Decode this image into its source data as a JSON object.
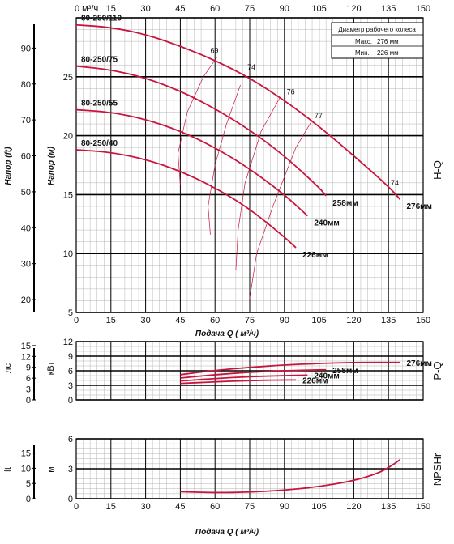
{
  "colors": {
    "curve": "#c8153d",
    "grid_major": "#000000",
    "grid_minor": "#b4b4b4",
    "efficiency": "#c8153d"
  },
  "legend": {
    "title": "Диаметр рабочего колеса",
    "max_label": "Макс.",
    "max_value": "276 мм",
    "min_label": "Мин.",
    "min_value": "226 мм"
  },
  "top_axis": {
    "unit_zero_label": "0 м³/ч",
    "ticks": [
      "15",
      "30",
      "45",
      "60",
      "75",
      "90",
      "105",
      "120",
      "135",
      "150"
    ]
  },
  "chart_data": [
    {
      "type": "line",
      "panel": "H-Q",
      "xlabel": "Подача Q ( м³/ч)",
      "ylabel": "Напор (м)",
      "ylabel_secondary": "Напор (ft)",
      "side_label": "H-Q",
      "xlim": [
        0,
        150
      ],
      "ylim": [
        5,
        30
      ],
      "x_ticks": [
        0,
        15,
        30,
        45,
        60,
        75,
        90,
        105,
        120,
        135,
        150
      ],
      "y_ticks": [
        10,
        15,
        20,
        25
      ],
      "y_ticks_ft": [
        20,
        30,
        40,
        50,
        60,
        70,
        80,
        90
      ],
      "series": [
        {
          "name": "276мм",
          "x": [
            0,
            15,
            30,
            45,
            60,
            75,
            90,
            105,
            120,
            135,
            140
          ],
          "y": [
            29.4,
            29.2,
            28.6,
            27.6,
            26.4,
            24.9,
            23.0,
            20.8,
            18.3,
            15.7,
            14.6
          ]
        },
        {
          "name": "258мм",
          "x": [
            0,
            15,
            30,
            45,
            60,
            75,
            90,
            105,
            108
          ],
          "y": [
            25.9,
            25.6,
            24.9,
            23.8,
            22.3,
            20.5,
            18.3,
            15.6,
            14.9
          ]
        },
        {
          "name": "240мм",
          "x": [
            0,
            15,
            30,
            45,
            60,
            75,
            90,
            100
          ],
          "y": [
            22.2,
            22.0,
            21.4,
            20.4,
            19.0,
            17.2,
            15.0,
            13.2
          ]
        },
        {
          "name": "226мм",
          "x": [
            0,
            15,
            30,
            45,
            60,
            75,
            90,
            95
          ],
          "y": [
            18.8,
            18.6,
            18.0,
            17.0,
            15.6,
            13.8,
            11.4,
            10.5
          ]
        }
      ],
      "model_labels": [
        "80-250/110",
        "80-250/75",
        "80-250/55",
        "80-250/40"
      ],
      "efficiency_labels": [
        "69",
        "74",
        "76",
        "77",
        "74"
      ]
    },
    {
      "type": "line",
      "panel": "P-Q",
      "ylabel": "кВт",
      "ylabel_secondary": "лс",
      "side_label": "P-Q",
      "xlim": [
        0,
        150
      ],
      "ylim": [
        0,
        12
      ],
      "x_ticks": [],
      "y_ticks": [
        0,
        3,
        6,
        9,
        12
      ],
      "y_ticks_hp": [
        0,
        3,
        6,
        9,
        12,
        15
      ],
      "series": [
        {
          "name": "276мм",
          "x": [
            45,
            60,
            75,
            90,
            105,
            120,
            135,
            140
          ],
          "y": [
            5.2,
            6.1,
            6.7,
            7.2,
            7.5,
            7.7,
            7.7,
            7.7
          ]
        },
        {
          "name": "258мм",
          "x": [
            45,
            60,
            75,
            90,
            105,
            108
          ],
          "y": [
            4.5,
            5.2,
            5.7,
            6.0,
            6.2,
            6.2
          ]
        },
        {
          "name": "240мм",
          "x": [
            45,
            60,
            75,
            90,
            100
          ],
          "y": [
            3.9,
            4.4,
            4.8,
            5.0,
            5.1
          ]
        },
        {
          "name": "226мм",
          "x": [
            45,
            60,
            75,
            90,
            95
          ],
          "y": [
            3.4,
            3.7,
            4.0,
            4.1,
            4.1
          ]
        }
      ]
    },
    {
      "type": "line",
      "panel": "NPSHr",
      "xlabel": "Подача Q ( м³/ч)",
      "ylabel": "м",
      "ylabel_secondary": "ft",
      "side_label": "NPSHr",
      "xlim": [
        0,
        150
      ],
      "ylim": [
        0,
        6
      ],
      "x_ticks": [
        0,
        15,
        30,
        45,
        60,
        75,
        90,
        105,
        120,
        135,
        150
      ],
      "y_ticks": [
        0,
        3,
        6
      ],
      "y_ticks_ft": [
        0,
        5,
        10,
        15
      ],
      "series": [
        {
          "name": "",
          "x": [
            45,
            60,
            75,
            90,
            105,
            120,
            130,
            135,
            140
          ],
          "y": [
            0.7,
            0.6,
            0.65,
            0.85,
            1.2,
            1.8,
            2.5,
            3.1,
            3.9
          ]
        }
      ]
    }
  ]
}
